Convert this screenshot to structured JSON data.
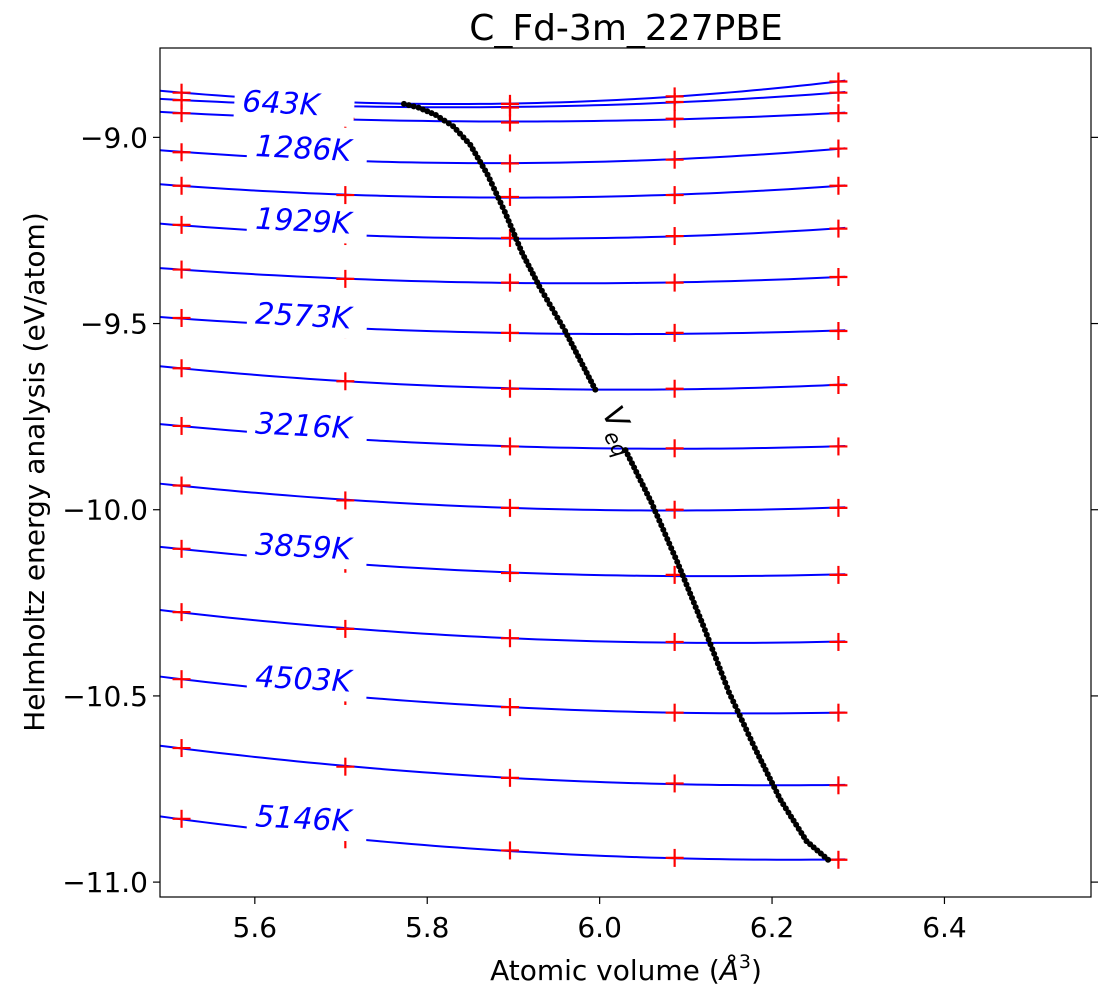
{
  "chart_data": {
    "type": "line",
    "title": "C_Fd-3m_227PBE",
    "xlabel_text": "Atomic volume (",
    "xlabel_symbol": "Å",
    "xlabel_exp": "3",
    "xlabel_close": ")",
    "ylabel": "Helmholtz energy analysis (eV/atom)",
    "xlim": [
      5.49,
      6.57
    ],
    "ylim": [
      -11.04,
      -8.76
    ],
    "xticks": [
      5.6,
      5.8,
      6.0,
      6.2,
      6.4
    ],
    "xtick_labels": [
      "5.6",
      "5.8",
      "6.0",
      "6.2",
      "6.4"
    ],
    "yticks": [
      -9.0,
      -9.5,
      -10.0,
      -10.5,
      -11.0
    ],
    "ytick_labels": [
      "−9.0",
      "−9.5",
      "−10.0",
      "−10.5",
      "−11.0"
    ],
    "grid": false,
    "colors": {
      "curve": "#0000ff",
      "points": "#ff0000",
      "veq": "#000000",
      "label": "#0000ff"
    },
    "volumes": [
      5.515,
      5.705,
      5.896,
      6.087,
      6.277
    ],
    "isotherms": [
      {
        "values": [
          -8.88,
          -8.905,
          -8.91,
          -8.89,
          -8.85
        ]
      },
      {
        "values": [
          -8.9,
          -8.915,
          -8.92,
          -8.905,
          -8.88
        ]
      },
      {
        "values": [
          -8.935,
          -8.95,
          -8.96,
          -8.95,
          -8.935
        ]
      },
      {
        "values": [
          -9.04,
          -9.06,
          -9.07,
          -9.06,
          -9.03
        ]
      },
      {
        "values": [
          -9.13,
          -9.155,
          -9.16,
          -9.155,
          -9.13
        ]
      },
      {
        "values": [
          -9.235,
          -9.265,
          -9.27,
          -9.265,
          -9.245
        ]
      },
      {
        "values": [
          -9.355,
          -9.38,
          -9.39,
          -9.39,
          -9.375
        ]
      },
      {
        "values": [
          -9.485,
          -9.515,
          -9.525,
          -9.525,
          -9.52
        ]
      },
      {
        "values": [
          -9.62,
          -9.655,
          -9.675,
          -9.675,
          -9.665
        ]
      },
      {
        "values": [
          -9.775,
          -9.81,
          -9.83,
          -9.835,
          -9.83
        ]
      },
      {
        "values": [
          -9.935,
          -9.975,
          -9.995,
          -10.0,
          -9.995
        ]
      },
      {
        "values": [
          -10.105,
          -10.145,
          -10.17,
          -10.175,
          -10.175
        ]
      },
      {
        "values": [
          -10.275,
          -10.32,
          -10.345,
          -10.355,
          -10.355
        ]
      },
      {
        "values": [
          -10.455,
          -10.5,
          -10.53,
          -10.545,
          -10.545
        ]
      },
      {
        "values": [
          -10.64,
          -10.69,
          -10.72,
          -10.735,
          -10.74
        ]
      },
      {
        "values": [
          -10.83,
          -10.885,
          -10.915,
          -10.935,
          -10.94
        ]
      }
    ],
    "temperature_labels": [
      {
        "text": "643K",
        "x": 5.585,
        "y": -8.93
      },
      {
        "text": "1286K",
        "x": 5.6,
        "y": -9.05
      },
      {
        "text": "1929K",
        "x": 5.6,
        "y": -9.245
      },
      {
        "text": "2573K",
        "x": 5.6,
        "y": -9.5
      },
      {
        "text": "3216K",
        "x": 5.6,
        "y": -9.795
      },
      {
        "text": "3859K",
        "x": 5.6,
        "y": -10.12
      },
      {
        "text": "4503K",
        "x": 5.6,
        "y": -10.475
      },
      {
        "text": "5146K",
        "x": 5.6,
        "y": -10.85
      }
    ],
    "veq_label": {
      "main": "V",
      "sub": "eq",
      "x": 6.0,
      "y": -9.8
    },
    "veq_curve": [
      [
        5.773,
        -8.91
      ],
      [
        5.79,
        -8.92
      ],
      [
        5.81,
        -8.94
      ],
      [
        5.83,
        -8.97
      ],
      [
        5.85,
        -9.02
      ],
      [
        5.87,
        -9.1
      ],
      [
        5.89,
        -9.2
      ],
      [
        5.91,
        -9.31
      ],
      [
        5.93,
        -9.4
      ],
      [
        5.96,
        -9.52
      ],
      [
        5.98,
        -9.61
      ],
      [
        6.0,
        -9.7
      ],
      [
        6.03,
        -9.84
      ],
      [
        6.06,
        -9.98
      ],
      [
        6.09,
        -10.14
      ],
      [
        6.12,
        -10.31
      ],
      [
        6.15,
        -10.49
      ],
      [
        6.18,
        -10.64
      ],
      [
        6.21,
        -10.78
      ],
      [
        6.24,
        -10.89
      ],
      [
        6.265,
        -10.94
      ]
    ]
  }
}
